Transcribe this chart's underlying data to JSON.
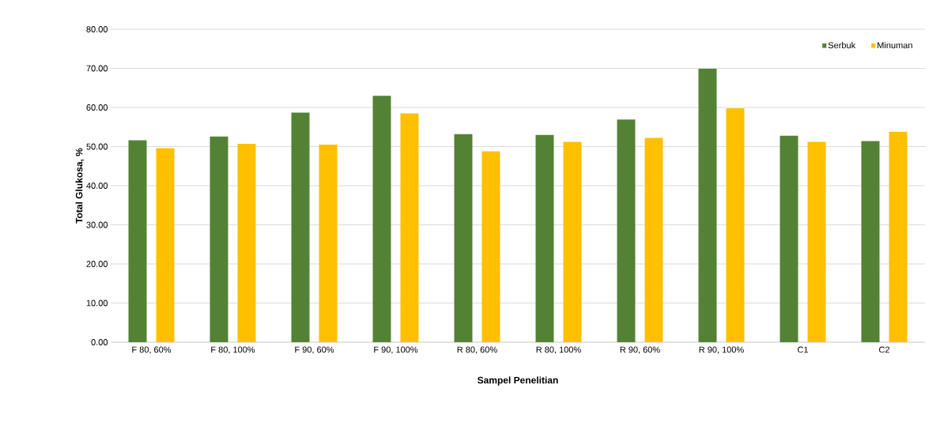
{
  "chart_data": {
    "type": "bar",
    "xlabel": "Sampel Penelitian",
    "ylabel": "Total Glukosa, %",
    "categories": [
      "F 80, 60%",
      "F 80, 100%",
      "F 90, 60%",
      "F 90, 100%",
      "R 80, 60%",
      "R 80, 100%",
      "R 90, 60%",
      "R 90, 100%",
      "C1",
      "C2"
    ],
    "series": [
      {
        "name": "Serbuk",
        "color": "#548235",
        "values": [
          51.6,
          52.6,
          58.7,
          63.0,
          53.2,
          53.0,
          56.9,
          69.9,
          52.8,
          51.4
        ]
      },
      {
        "name": "Minuman",
        "color": "#ffc000",
        "values": [
          49.6,
          50.7,
          50.5,
          58.5,
          48.8,
          51.2,
          52.2,
          59.8,
          51.2,
          53.8
        ]
      }
    ],
    "ylim": [
      0,
      80
    ],
    "yticks": [
      {
        "value": 0,
        "label": "0.00"
      },
      {
        "value": 10,
        "label": "10.00"
      },
      {
        "value": 20,
        "label": "20.00"
      },
      {
        "value": 30,
        "label": "30.00"
      },
      {
        "value": 40,
        "label": "40.00"
      },
      {
        "value": 50,
        "label": "50.00"
      },
      {
        "value": 60,
        "label": "60.00"
      },
      {
        "value": 70,
        "label": "70.00"
      },
      {
        "value": 80,
        "label": "80.00"
      }
    ],
    "grid": "y",
    "legend": "top right"
  }
}
